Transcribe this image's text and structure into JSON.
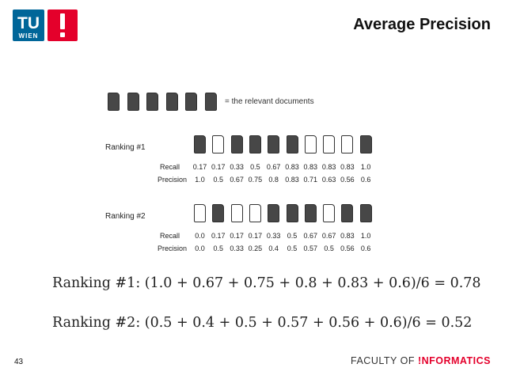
{
  "header": {
    "logo_tu": "TU",
    "logo_wien": "WIEN",
    "title": "Average Precision"
  },
  "legend": {
    "relevant_count": 6,
    "text": "= the relevant documents"
  },
  "rankings": [
    {
      "label": "Ranking #1",
      "relevance": [
        1,
        0,
        1,
        1,
        1,
        1,
        0,
        0,
        0,
        1
      ],
      "recall_label": "Recall",
      "precision_label": "Precision",
      "recall": [
        "0.17",
        "0.17",
        "0.33",
        "0.5",
        "0.67",
        "0.83",
        "0.83",
        "0.83",
        "0.83",
        "1.0"
      ],
      "precision": [
        "1.0",
        "0.5",
        "0.67",
        "0.75",
        "0.8",
        "0.83",
        "0.71",
        "0.63",
        "0.56",
        "0.6"
      ]
    },
    {
      "label": "Ranking #2",
      "relevance": [
        0,
        1,
        0,
        0,
        1,
        1,
        1,
        0,
        1,
        1
      ],
      "recall_label": "Recall",
      "precision_label": "Precision",
      "recall": [
        "0.0",
        "0.17",
        "0.17",
        "0.17",
        "0.33",
        "0.5",
        "0.67",
        "0.67",
        "0.83",
        "1.0"
      ],
      "precision": [
        "0.0",
        "0.5",
        "0.33",
        "0.25",
        "0.4",
        "0.5",
        "0.57",
        "0.5",
        "0.56",
        "0.6"
      ]
    }
  ],
  "formulas": {
    "ranking1": "Ranking #1:  (1.0 + 0.67 + 0.75 + 0.8 + 0.83 + 0.6)/6 = 0.78",
    "ranking2": "Ranking #2:  (0.5 + 0.4 + 0.5 + 0.57 + 0.56 + 0.6)/6 = 0.52"
  },
  "footer": {
    "page_number": "43",
    "faculty_prefix": "FACULTY OF ",
    "faculty_name": "!NFORMATICS"
  },
  "colors": {
    "tu_blue": "#006699",
    "red": "#e4002b",
    "relevant_doc": "#474747"
  }
}
